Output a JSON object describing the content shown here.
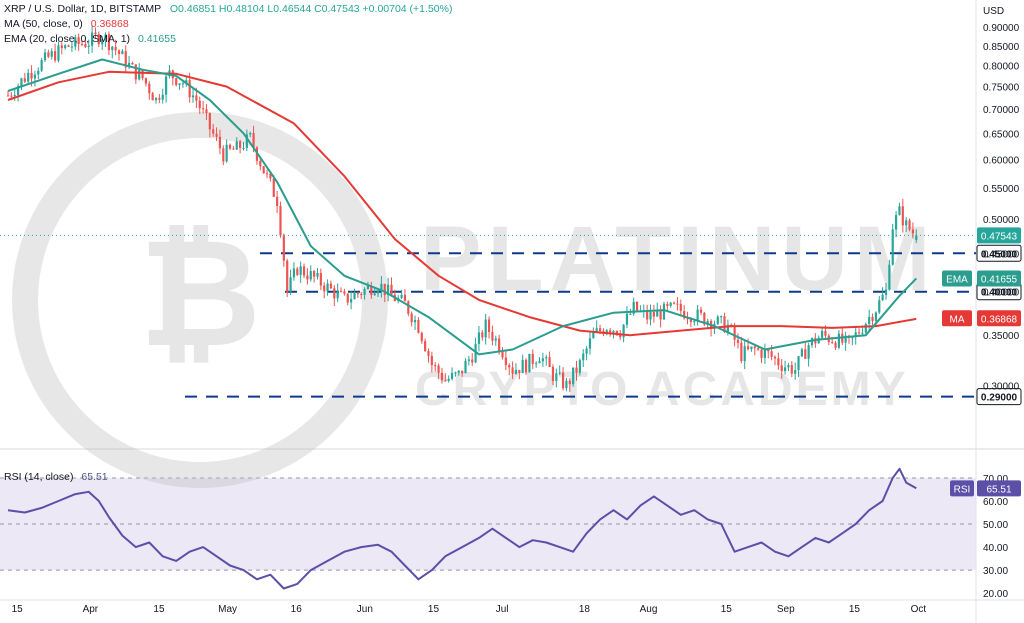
{
  "legend": {
    "symbol": "XRP / U.S. Dollar, 1D, BITSTAMP",
    "ohlc": "O0.46851 H0.48104 L0.46544 C0.47543 +0.00704 (+1.50%)",
    "ma_label": "MA (50, close, 0)",
    "ma_value": "0.36868",
    "ema_label": "EMA (20, close, 0, SMA, 1)",
    "ema_value": "0.41655",
    "rsi_label": "RSI (14, close)",
    "rsi_value": "65.51"
  },
  "watermark": "PLATINUM CRYPTO ACADEMY",
  "colors": {
    "up": "#26a69a",
    "down": "#ef5350",
    "ema": "#2a9d8f",
    "ma": "#e53935",
    "rsi": "#5b4fa8",
    "level_lines": "#0d3a8c",
    "rsi_band": "#ece8f6"
  },
  "chart_data": [
    {
      "type": "candlestick",
      "title": "XRP / U.S. Dollar, 1D, BITSTAMP",
      "y_axis_unit": "USD",
      "ylim": [
        0.25,
        0.92
      ],
      "y_scale": "log",
      "y_ticks": [
        "0.90000",
        "0.85000",
        "0.80000",
        "0.75000",
        "0.70000",
        "0.65000",
        "0.60000",
        "0.55000",
        "0.50000",
        "0.45000",
        "0.40000",
        "0.35000",
        "0.30000"
      ],
      "x_ticks": [
        "15",
        "Apr",
        "15",
        "May",
        "16",
        "Jun",
        "15",
        "Jul",
        "18",
        "Aug",
        "15",
        "Sep",
        "15",
        "Oct"
      ],
      "horizontal_levels": [
        {
          "value": 0.45,
          "label": "0.45000"
        },
        {
          "value": 0.4,
          "label": "0.40000"
        },
        {
          "value": 0.29,
          "label": "0.29000"
        }
      ],
      "price_tags": [
        {
          "label": "0.47543",
          "value": 0.47543
        },
        {
          "label": "EMA",
          "tag_value": "0.41655",
          "value": 0.41655
        },
        {
          "label": "MA",
          "tag_value": "0.36868",
          "value": 0.36868
        }
      ],
      "series": [
        {
          "name": "MA (50, close, 0)",
          "points": [
            [
              0,
              0.72
            ],
            [
              15,
              0.76
            ],
            [
              30,
              0.785
            ],
            [
              50,
              0.78
            ],
            [
              65,
              0.75
            ],
            [
              85,
              0.67
            ],
            [
              100,
              0.57
            ],
            [
              115,
              0.47
            ],
            [
              128,
              0.42
            ],
            [
              140,
              0.39
            ],
            [
              155,
              0.37
            ],
            [
              170,
              0.355
            ],
            [
              185,
              0.35
            ],
            [
              200,
              0.355
            ],
            [
              215,
              0.36
            ],
            [
              230,
              0.36
            ],
            [
              245,
              0.358
            ],
            [
              258,
              0.36
            ],
            [
              270,
              0.368
            ]
          ]
        },
        {
          "name": "EMA (20, close, 0, SMA, 1)",
          "points": [
            [
              0,
              0.74
            ],
            [
              15,
              0.78
            ],
            [
              28,
              0.815
            ],
            [
              40,
              0.79
            ],
            [
              50,
              0.775
            ],
            [
              60,
              0.72
            ],
            [
              70,
              0.65
            ],
            [
              80,
              0.56
            ],
            [
              90,
              0.46
            ],
            [
              100,
              0.42
            ],
            [
              112,
              0.4
            ],
            [
              125,
              0.37
            ],
            [
              140,
              0.33
            ],
            [
              150,
              0.335
            ],
            [
              165,
              0.36
            ],
            [
              180,
              0.375
            ],
            [
              195,
              0.378
            ],
            [
              210,
              0.36
            ],
            [
              225,
              0.335
            ],
            [
              240,
              0.345
            ],
            [
              255,
              0.35
            ],
            [
              265,
              0.395
            ],
            [
              270,
              0.4166
            ]
          ]
        }
      ],
      "price_path": [
        [
          0,
          0.73
        ],
        [
          6,
          0.78
        ],
        [
          12,
          0.82
        ],
        [
          18,
          0.85
        ],
        [
          24,
          0.86
        ],
        [
          28,
          0.88
        ],
        [
          31,
          0.85
        ],
        [
          34,
          0.82
        ],
        [
          37,
          0.79
        ],
        [
          40,
          0.77
        ],
        [
          44,
          0.72
        ],
        [
          48,
          0.78
        ],
        [
          52,
          0.76
        ],
        [
          56,
          0.72
        ],
        [
          60,
          0.66
        ],
        [
          64,
          0.61
        ],
        [
          68,
          0.62
        ],
        [
          72,
          0.64
        ],
        [
          76,
          0.58
        ],
        [
          80,
          0.53
        ],
        [
          83,
          0.4
        ],
        [
          86,
          0.43
        ],
        [
          90,
          0.42
        ],
        [
          95,
          0.405
        ],
        [
          100,
          0.39
        ],
        [
          105,
          0.4
        ],
        [
          110,
          0.41
        ],
        [
          114,
          0.395
        ],
        [
          118,
          0.385
        ],
        [
          122,
          0.36
        ],
        [
          126,
          0.32
        ],
        [
          130,
          0.305
        ],
        [
          134,
          0.31
        ],
        [
          138,
          0.33
        ],
        [
          142,
          0.36
        ],
        [
          146,
          0.34
        ],
        [
          150,
          0.315
        ],
        [
          154,
          0.32
        ],
        [
          158,
          0.33
        ],
        [
          162,
          0.31
        ],
        [
          166,
          0.3
        ],
        [
          170,
          0.32
        ],
        [
          174,
          0.35
        ],
        [
          178,
          0.36
        ],
        [
          182,
          0.355
        ],
        [
          186,
          0.38
        ],
        [
          190,
          0.37
        ],
        [
          194,
          0.375
        ],
        [
          198,
          0.38
        ],
        [
          202,
          0.375
        ],
        [
          206,
          0.37
        ],
        [
          210,
          0.365
        ],
        [
          214,
          0.36
        ],
        [
          218,
          0.33
        ],
        [
          222,
          0.335
        ],
        [
          226,
          0.33
        ],
        [
          230,
          0.32
        ],
        [
          234,
          0.315
        ],
        [
          238,
          0.34
        ],
        [
          242,
          0.35
        ],
        [
          246,
          0.345
        ],
        [
          250,
          0.34
        ],
        [
          254,
          0.36
        ],
        [
          258,
          0.38
        ],
        [
          261,
          0.4
        ],
        [
          263,
          0.49
        ],
        [
          265,
          0.51
        ],
        [
          267,
          0.49
        ],
        [
          270,
          0.475
        ]
      ],
      "ohlc_last": {
        "open": 0.46851,
        "high": 0.48104,
        "low": 0.46544,
        "close": 0.47543
      }
    },
    {
      "type": "line",
      "title": "RSI (14, close)",
      "ylim": [
        17,
        80
      ],
      "y_ticks": [
        "70.00",
        "60.00",
        "50.00",
        "40.00",
        "30.00",
        "20.00"
      ],
      "band": [
        30,
        70
      ],
      "midline": 50,
      "last_value_label": "RSI",
      "last_value": "65.51",
      "points": [
        [
          0,
          56
        ],
        [
          5,
          55
        ],
        [
          10,
          57
        ],
        [
          15,
          60
        ],
        [
          20,
          63
        ],
        [
          24,
          64
        ],
        [
          27,
          60
        ],
        [
          30,
          53
        ],
        [
          34,
          45
        ],
        [
          38,
          40
        ],
        [
          42,
          42
        ],
        [
          46,
          36
        ],
        [
          50,
          34
        ],
        [
          54,
          38
        ],
        [
          58,
          40
        ],
        [
          62,
          36
        ],
        [
          66,
          32
        ],
        [
          70,
          30
        ],
        [
          74,
          26
        ],
        [
          78,
          28
        ],
        [
          82,
          22
        ],
        [
          86,
          24
        ],
        [
          90,
          30
        ],
        [
          95,
          34
        ],
        [
          100,
          38
        ],
        [
          105,
          40
        ],
        [
          110,
          41
        ],
        [
          114,
          38
        ],
        [
          118,
          32
        ],
        [
          122,
          26
        ],
        [
          126,
          30
        ],
        [
          130,
          36
        ],
        [
          135,
          40
        ],
        [
          140,
          44
        ],
        [
          144,
          48
        ],
        [
          148,
          44
        ],
        [
          152,
          40
        ],
        [
          156,
          43
        ],
        [
          160,
          42
        ],
        [
          164,
          40
        ],
        [
          168,
          38
        ],
        [
          172,
          46
        ],
        [
          176,
          52
        ],
        [
          180,
          56
        ],
        [
          184,
          52
        ],
        [
          188,
          58
        ],
        [
          192,
          62
        ],
        [
          196,
          58
        ],
        [
          200,
          54
        ],
        [
          204,
          56
        ],
        [
          208,
          52
        ],
        [
          212,
          50
        ],
        [
          216,
          38
        ],
        [
          220,
          40
        ],
        [
          224,
          42
        ],
        [
          228,
          38
        ],
        [
          232,
          36
        ],
        [
          236,
          40
        ],
        [
          240,
          44
        ],
        [
          244,
          42
        ],
        [
          248,
          46
        ],
        [
          252,
          50
        ],
        [
          256,
          56
        ],
        [
          260,
          60
        ],
        [
          263,
          70
        ],
        [
          265,
          74
        ],
        [
          267,
          68
        ],
        [
          270,
          65.51
        ]
      ]
    }
  ]
}
